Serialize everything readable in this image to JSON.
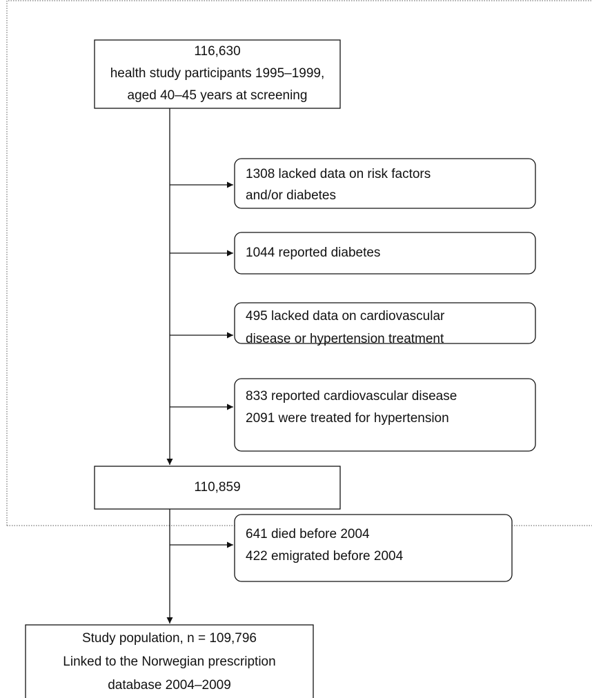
{
  "nodes": [
    {
      "lines": [
        "116,630",
        "health study participants 1995–1999,",
        "aged 40–45 years at screening"
      ]
    },
    {
      "lines": [
        "1308 lacked data on risk factors",
        "and/or diabetes"
      ]
    },
    {
      "lines": [
        "1044 reported diabetes"
      ]
    },
    {
      "lines": [
        "495 lacked data on cardiovascular",
        "disease or hypertension treatment"
      ]
    },
    {
      "lines": [
        "833 reported cardiovascular disease",
        "2091 were treated for hypertension"
      ]
    },
    {
      "lines": [
        "110,859"
      ]
    },
    {
      "lines": [
        "641 died before 2004",
        "422 emigrated before 2004"
      ]
    },
    {
      "lines": [
        "Study population, n = 109,796",
        "Linked to the Norwegian prescription",
        "database 2004–2009"
      ]
    }
  ]
}
